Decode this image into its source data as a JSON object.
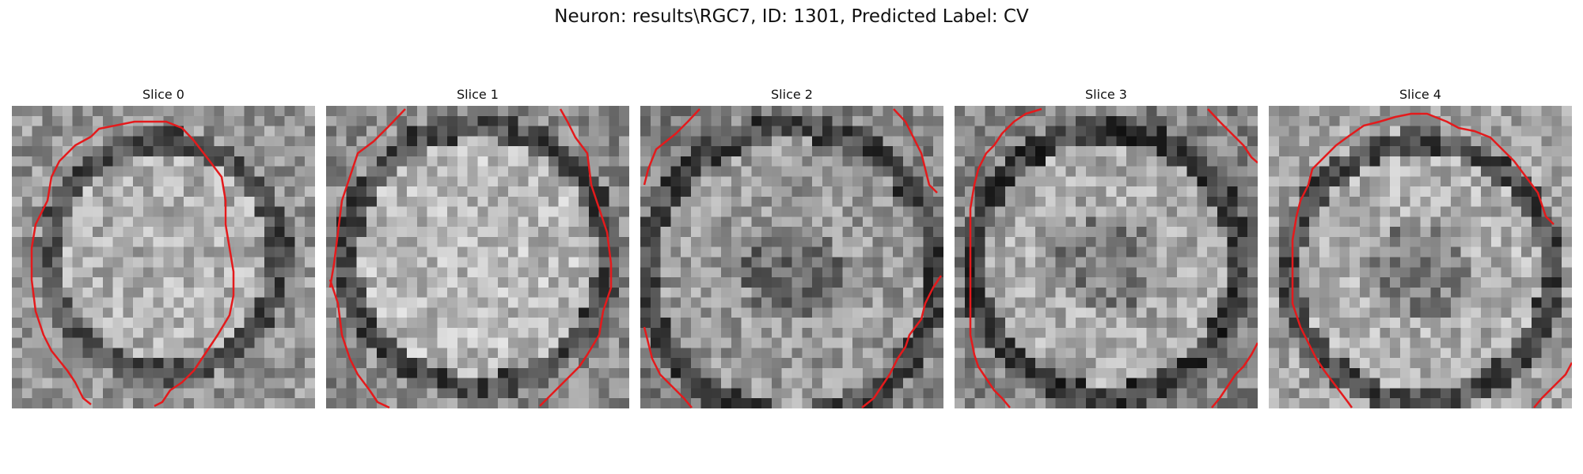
{
  "figure": {
    "title": "Neuron: results\\RGC7, ID: 1301, Predicted Label: CV"
  },
  "panels": [
    {
      "title": "Slice 0"
    },
    {
      "title": "Slice 1"
    },
    {
      "title": "Slice 2"
    },
    {
      "title": "Slice 3"
    },
    {
      "title": "Slice 4"
    }
  ],
  "colors": {
    "contour": "#e41a1c",
    "background": "#ffffff"
  },
  "image": {
    "colormap": "grayscale",
    "pixel_grid": "30x30"
  }
}
